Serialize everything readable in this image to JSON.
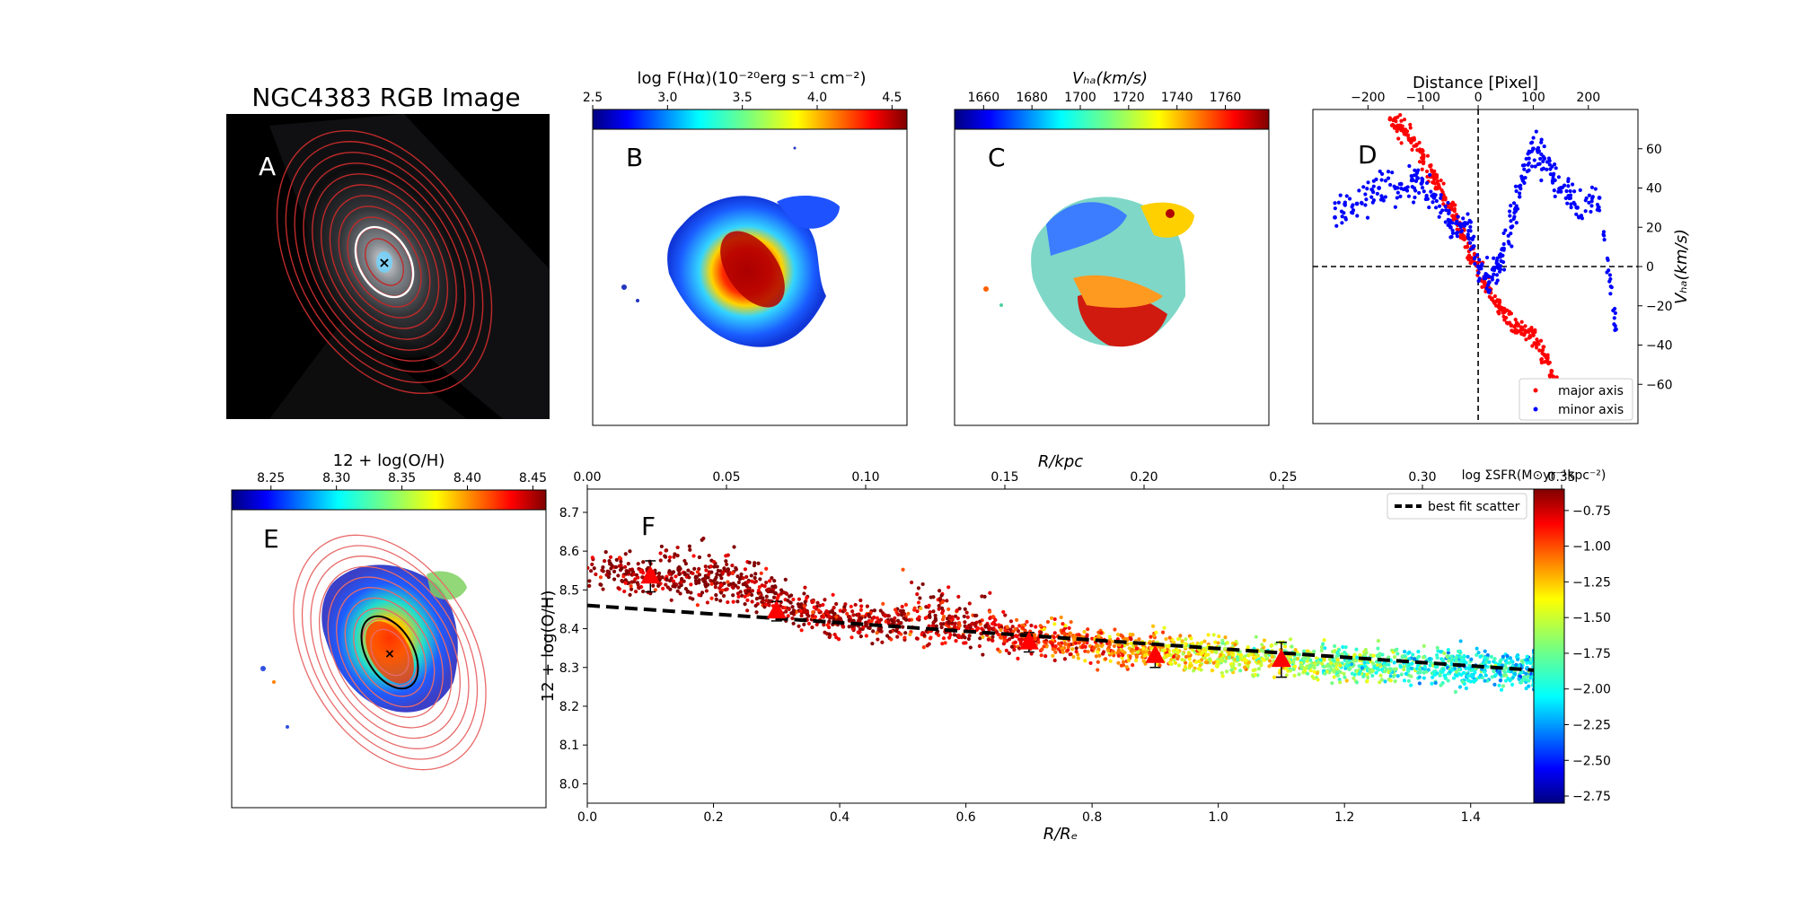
{
  "panels": {
    "A": {
      "letter": "A",
      "title": "NGC4383 RGB Image"
    },
    "B": {
      "letter": "B",
      "colorbar_label": "log F(Hα)(10⁻²⁰erg s⁻¹ cm⁻²)",
      "colorbar_ticks": [
        "2.5",
        "3.0",
        "3.5",
        "4.0",
        "4.5"
      ],
      "colorbar_range": [
        2.5,
        4.6
      ]
    },
    "C": {
      "letter": "C",
      "colorbar_label": "Vₕₐ(km/s)",
      "colorbar_ticks": [
        "1660",
        "1680",
        "1700",
        "1720",
        "1740",
        "1760"
      ],
      "colorbar_range": [
        1648,
        1778
      ]
    },
    "E": {
      "letter": "E",
      "colorbar_label": "12 + log(O/H)",
      "colorbar_ticks": [
        "8.25",
        "8.30",
        "8.35",
        "8.40",
        "8.45"
      ],
      "colorbar_range": [
        8.22,
        8.46
      ]
    }
  },
  "chart_data": [
    {
      "panel": "D",
      "letter": "D",
      "type": "scatter",
      "top_xlabel": "Distance [Pixel]",
      "ylabel": "Vₕₐ(km/s)",
      "xlim": [
        -300,
        290
      ],
      "ylim": [
        -80,
        80
      ],
      "xticks": [
        "−200",
        "−100",
        "0",
        "100",
        "200"
      ],
      "yticks": [
        "60",
        "40",
        "20",
        "0",
        "−20",
        "−40",
        "−60"
      ],
      "legend": [
        "major axis",
        "minor axis"
      ],
      "legend_position": "lower right",
      "series": [
        {
          "name": "major axis",
          "color": "#ff0000",
          "x": [
            -160,
            -140,
            -120,
            -100,
            -80,
            -60,
            -40,
            -20,
            0,
            20,
            40,
            60,
            80,
            100,
            120,
            140,
            160
          ],
          "y": [
            75,
            70,
            65,
            55,
            45,
            35,
            25,
            10,
            0,
            -12,
            -22,
            -30,
            -32,
            -35,
            -45,
            -60,
            -68
          ]
        },
        {
          "name": "minor axis",
          "color": "#0000ff",
          "x": [
            -260,
            -220,
            -180,
            -140,
            -110,
            -80,
            -50,
            -20,
            0,
            20,
            40,
            60,
            80,
            100,
            120,
            150,
            180,
            220,
            250
          ],
          "y": [
            25,
            32,
            40,
            42,
            45,
            35,
            20,
            22,
            0,
            -8,
            5,
            20,
            45,
            60,
            55,
            40,
            30,
            35,
            -32
          ]
        }
      ]
    },
    {
      "panel": "F",
      "letter": "F",
      "type": "scatter",
      "xlabel": "R/Rₑ",
      "top_xlabel": "R/kpc",
      "ylabel": "12 + log(O/H)",
      "xlim": [
        0.0,
        1.5
      ],
      "ylim": [
        7.95,
        8.76
      ],
      "top_xlim": [
        0.0,
        0.34
      ],
      "xticks": [
        "0.0",
        "0.2",
        "0.4",
        "0.6",
        "0.8",
        "1.0",
        "1.2",
        "1.4"
      ],
      "top_xticks": [
        "0.00",
        "0.05",
        "0.10",
        "0.15",
        "0.20",
        "0.25",
        "0.30",
        "0.35"
      ],
      "yticks": [
        "8.0",
        "8.1",
        "8.2",
        "8.3",
        "8.4",
        "8.5",
        "8.6",
        "8.7"
      ],
      "colorbar_label": "log ΣSFR(M⊙yr⁻¹kpc⁻²)",
      "colorbar_ticks": [
        "−0.75",
        "−1.00",
        "−1.25",
        "−1.50",
        "−1.75",
        "−2.00",
        "−2.25",
        "−2.50",
        "−2.75"
      ],
      "colorbar_range": [
        -2.8,
        -0.6
      ],
      "legend": [
        "best fit scatter"
      ],
      "legend_position": "upper right",
      "fit_line": {
        "x": [
          0.0,
          1.5
        ],
        "y": [
          8.46,
          8.293
        ]
      },
      "binned_points": {
        "x": [
          0.1,
          0.3,
          0.7,
          0.9,
          1.1
        ],
        "y": [
          8.535,
          8.445,
          8.365,
          8.33,
          8.32
        ],
        "yerr": [
          0.04,
          0.025,
          0.025,
          0.03,
          0.045
        ],
        "color": "#ff0000"
      },
      "scatter_trend": {
        "x": [
          0.0,
          0.2,
          0.4,
          0.6,
          0.8,
          1.0,
          1.2,
          1.4,
          1.5
        ],
        "y": [
          8.55,
          8.52,
          8.42,
          8.4,
          8.36,
          8.33,
          8.31,
          8.3,
          8.29
        ],
        "log_sfr": [
          -0.6,
          -0.6,
          -0.7,
          -0.75,
          -1.1,
          -1.45,
          -1.7,
          -1.95,
          -2.0
        ]
      }
    }
  ]
}
